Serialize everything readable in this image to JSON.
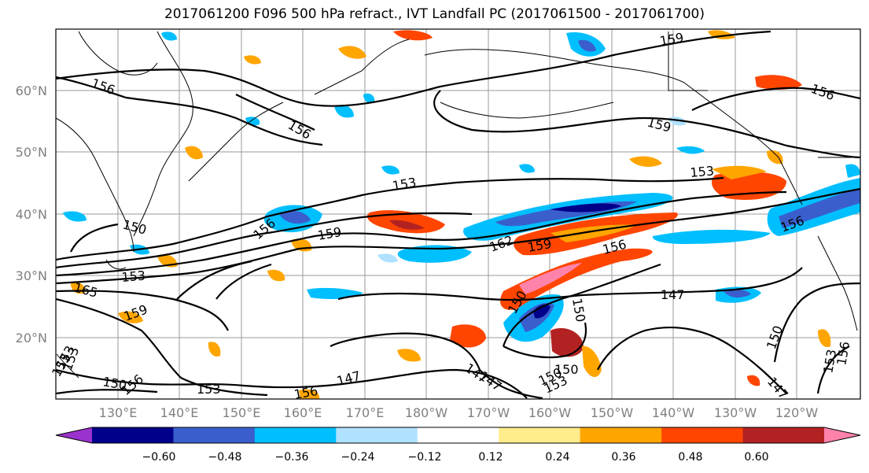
{
  "title": "2017061200 F096 500 hPa refract., IVT Landfall PC (2017061500 - 2017061700)",
  "lat_labels": [
    "60°N",
    "50°N",
    "40°N",
    "30°N",
    "20°N"
  ],
  "lon_labels": [
    "130°E",
    "140°E",
    "150°E",
    "160°E",
    "170°E",
    "180°W",
    "170°W",
    "160°W",
    "150°W",
    "140°W",
    "130°W",
    "120°W"
  ],
  "contour_labels": [
    "159",
    "156",
    "156",
    "159",
    "153",
    "153",
    "150",
    "156",
    "159",
    "162",
    "159",
    "156",
    "156",
    "153",
    "165",
    "159",
    "147",
    "150",
    "150",
    "150",
    "147",
    "153",
    "156",
    "150",
    "156",
    "153",
    "147",
    "150",
    "153",
    "156",
    "147",
    "156",
    "147",
    "150",
    "153",
    "153",
    "153"
  ],
  "colorbar": {
    "colors": [
      "#9a32cd",
      "#00008b",
      "#3a5fcd",
      "#00bfff",
      "#b0e2ff",
      "#ffffff",
      "#ffec8b",
      "#ffa500",
      "#ff4500",
      "#b22222",
      "#ff82ab"
    ],
    "tick_labels": [
      "−0.60",
      "−0.48",
      "−0.36",
      "−0.24",
      "−0.12",
      "0.12",
      "0.24",
      "0.36",
      "0.48",
      "0.60"
    ]
  }
}
